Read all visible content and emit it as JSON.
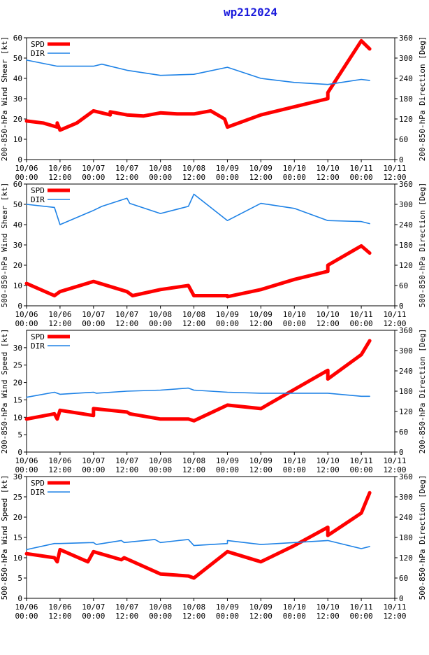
{
  "title": "wp212024",
  "colors": {
    "title": "#1a1adc",
    "spd": "#ff0000",
    "dir": "#1e82e6",
    "axis": "#000000"
  },
  "x_ticks": [
    {
      "date": "10/06",
      "time": "00:00"
    },
    {
      "date": "10/06",
      "time": "12:00"
    },
    {
      "date": "10/07",
      "time": "00:00"
    },
    {
      "date": "10/07",
      "time": "12:00"
    },
    {
      "date": "10/08",
      "time": "00:00"
    },
    {
      "date": "10/08",
      "time": "12:00"
    },
    {
      "date": "10/09",
      "time": "00:00"
    },
    {
      "date": "10/09",
      "time": "12:00"
    },
    {
      "date": "10/10",
      "time": "00:00"
    },
    {
      "date": "10/10",
      "time": "12:00"
    },
    {
      "date": "10/11",
      "time": "00:00"
    },
    {
      "date": "10/11",
      "time": "12:00"
    }
  ],
  "legend": {
    "spd": "SPD",
    "dir": "DIR"
  },
  "chart_data": [
    {
      "type": "line",
      "ylabel": "200-850-hPa Wind Shear [kt]",
      "y2label": "200-850-hPa Direction [Deg]",
      "ylim": [
        0,
        60
      ],
      "yticks": [
        0,
        10,
        20,
        30,
        40,
        50,
        60
      ],
      "y2lim": [
        0,
        360
      ],
      "y2ticks": [
        0,
        60,
        120,
        180,
        240,
        300,
        360
      ],
      "xlim_hours": [
        0,
        132
      ],
      "series": [
        {
          "name": "SPD",
          "axis": "left",
          "x": [
            0,
            6,
            11,
            11,
            12,
            18,
            24,
            30,
            30,
            36,
            42,
            48,
            54,
            60,
            66,
            71,
            72,
            84,
            96,
            108,
            108,
            120,
            123
          ],
          "y": [
            19,
            18,
            16,
            18,
            14.5,
            18,
            24,
            22,
            23.5,
            22,
            21.5,
            23,
            22.5,
            22.5,
            24,
            20,
            16,
            22,
            26,
            30,
            33,
            58.5,
            54.5
          ]
        },
        {
          "name": "DIR",
          "axis": "right",
          "x": [
            0,
            11,
            12,
            24,
            27,
            36,
            48,
            60,
            72,
            84,
            96,
            108,
            120,
            123
          ],
          "y": [
            294,
            276,
            276,
            276,
            282,
            264,
            249,
            252,
            273,
            240,
            228,
            222,
            237,
            234
          ]
        }
      ]
    },
    {
      "type": "line",
      "ylabel": "500-850-hPa Wind Shear [kt]",
      "y2label": "500-850-hPa Direction [Deg]",
      "ylim": [
        0,
        60
      ],
      "yticks": [
        0,
        10,
        20,
        30,
        40,
        50,
        60
      ],
      "y2lim": [
        0,
        360
      ],
      "y2ticks": [
        0,
        60,
        120,
        180,
        240,
        300,
        360
      ],
      "xlim_hours": [
        0,
        132
      ],
      "series": [
        {
          "name": "SPD",
          "axis": "left",
          "x": [
            0,
            10,
            12,
            24,
            36,
            38,
            48,
            58,
            60,
            72,
            72,
            84,
            96,
            108,
            108,
            120,
            123
          ],
          "y": [
            11,
            5,
            7,
            12,
            7,
            5,
            8,
            10,
            5,
            5,
            4.5,
            8,
            13,
            17,
            20,
            29.5,
            26
          ]
        },
        {
          "name": "DIR",
          "axis": "right",
          "x": [
            0,
            10,
            12,
            24,
            27,
            36,
            37,
            48,
            58,
            60,
            72,
            84,
            96,
            108,
            120,
            123
          ],
          "y": [
            300,
            291,
            240,
            282,
            294,
            318,
            303,
            273,
            294,
            330,
            252,
            303,
            288,
            252,
            249,
            243
          ]
        }
      ]
    },
    {
      "type": "line",
      "ylabel": "200-850-hPa Wind Speed [kt]",
      "y2label": "200-850-hPa Direction [Deg]",
      "ylim": [
        0,
        35
      ],
      "yticks": [
        0,
        5,
        10,
        15,
        20,
        25,
        30
      ],
      "y2lim": [
        0,
        360
      ],
      "y2ticks": [
        0,
        60,
        120,
        180,
        240,
        300,
        360
      ],
      "xlim_hours": [
        0,
        132
      ],
      "series": [
        {
          "name": "SPD",
          "axis": "left",
          "x": [
            0,
            10,
            11,
            12,
            24,
            24,
            36,
            37,
            48,
            58,
            60,
            72,
            84,
            96,
            108,
            108,
            120,
            123
          ],
          "y": [
            9.5,
            11,
            9.5,
            12,
            10.5,
            12.5,
            11.5,
            11,
            9.5,
            9.5,
            9,
            13.5,
            12.5,
            18,
            23.5,
            21,
            28,
            32
          ]
        },
        {
          "name": "DIR",
          "axis": "right",
          "x": [
            0,
            10,
            12,
            24,
            25,
            36,
            48,
            58,
            60,
            72,
            84,
            96,
            108,
            120,
            123
          ],
          "y": [
            162,
            177,
            171,
            177,
            174,
            180,
            183,
            189,
            183,
            177,
            174,
            174,
            174,
            165,
            165
          ]
        }
      ]
    },
    {
      "type": "line",
      "ylabel": "500-850-hPa Wind Speed [kt]",
      "y2label": "500-850-hPa Direction [Deg]",
      "ylim": [
        0,
        30
      ],
      "yticks": [
        0,
        5,
        10,
        15,
        20,
        25,
        30
      ],
      "y2lim": [
        0,
        360
      ],
      "y2ticks": [
        0,
        60,
        120,
        180,
        240,
        300,
        360
      ],
      "xlim_hours": [
        0,
        132
      ],
      "series": [
        {
          "name": "SPD",
          "axis": "left",
          "x": [
            0,
            10,
            11,
            12,
            22,
            24,
            34,
            35,
            48,
            58,
            60,
            72,
            84,
            96,
            108,
            108,
            120,
            123
          ],
          "y": [
            11,
            10,
            9,
            12,
            9,
            11.5,
            9.5,
            10,
            6,
            5.5,
            5,
            11.5,
            9,
            13,
            17.5,
            15.5,
            21,
            26
          ]
        },
        {
          "name": "DIR",
          "axis": "right",
          "x": [
            0,
            10,
            12,
            24,
            25,
            34,
            35,
            46,
            48,
            58,
            60,
            72,
            72,
            84,
            96,
            108,
            120,
            123
          ],
          "y": [
            144,
            162,
            162,
            165,
            159,
            171,
            165,
            174,
            165,
            174,
            156,
            162,
            171,
            159,
            165,
            171,
            147,
            153
          ]
        }
      ]
    }
  ]
}
